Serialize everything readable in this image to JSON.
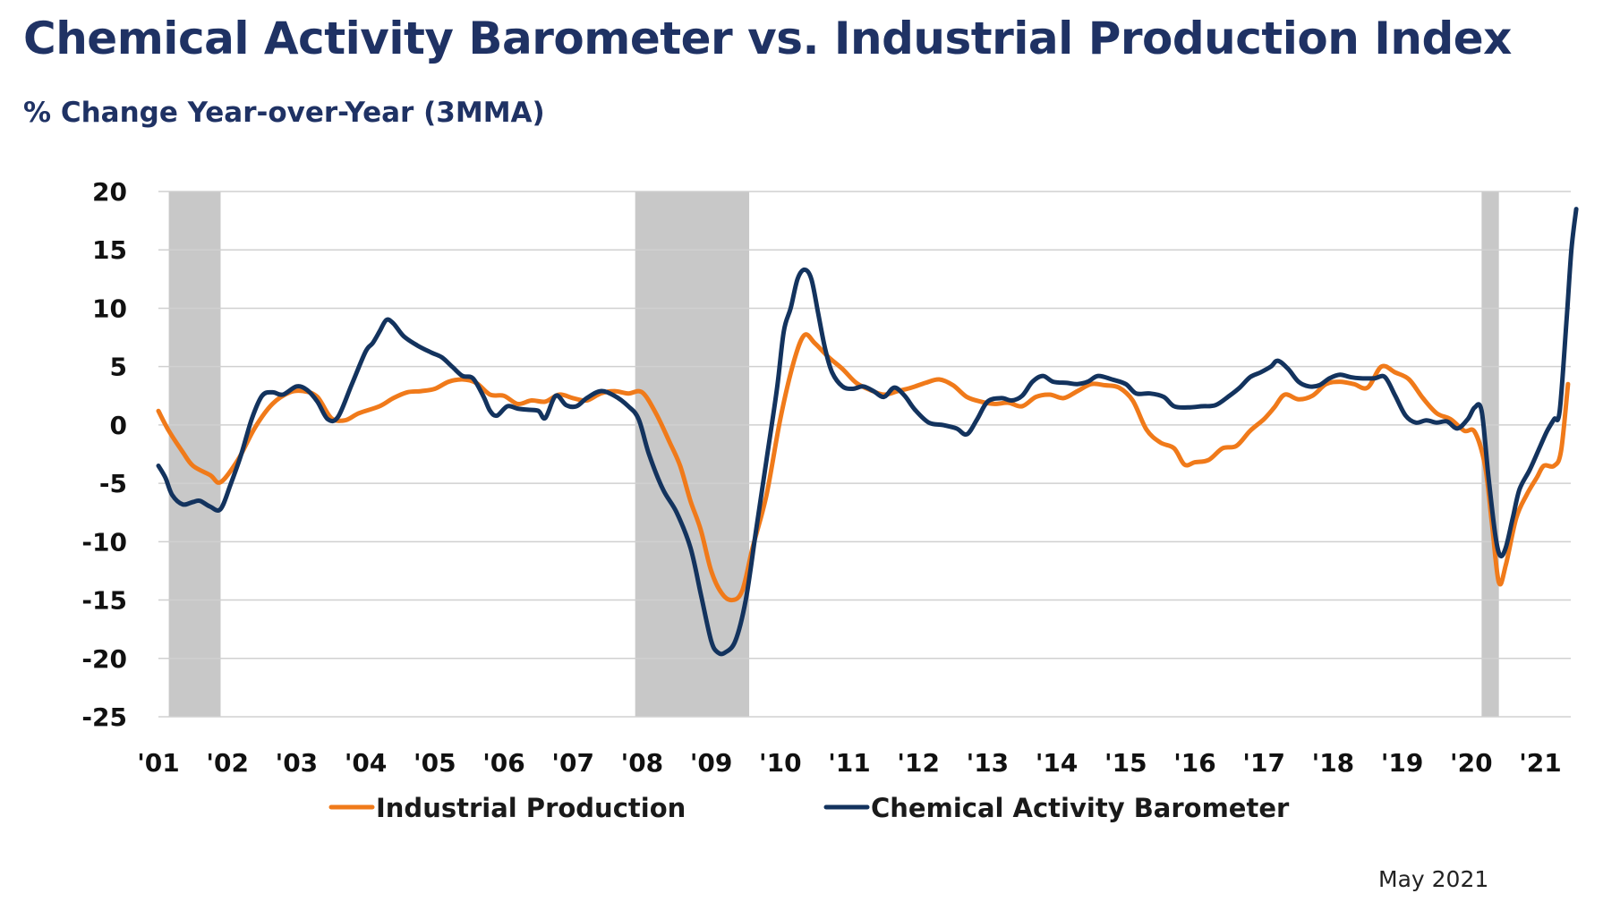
{
  "title": "Chemical Activity Barometer vs. Industrial Production Index",
  "subtitle": "% Change Year-over-Year (3MMA)",
  "footer_date": "May 2021",
  "colors": {
    "industrial_production": "#f07a1a",
    "chemical_activity_barometer": "#13335e",
    "recession_shading": "#c8c8c8",
    "gridline": "#d0d0d0",
    "title": "#1f3264"
  },
  "chart_data": {
    "type": "line",
    "title": "Chemical Activity Barometer vs. Industrial Production Index",
    "subtitle": "% Change Year-over-Year (3MMA)",
    "xlabel": "",
    "ylabel": "",
    "ylim": [
      -25,
      20
    ],
    "xlim": [
      2001.0,
      2021.55
    ],
    "yticks": [
      20,
      15,
      10,
      5,
      0,
      -5,
      -10,
      -15,
      -20,
      -25
    ],
    "ytick_labels": [
      "20",
      "15",
      "10",
      "5",
      "0",
      "-5",
      "-10",
      "-15",
      "-20",
      "-25"
    ],
    "xticks": [
      2001,
      2002,
      2003,
      2004,
      2005,
      2006,
      2007,
      2008,
      2009,
      2010,
      2011,
      2012,
      2013,
      2014,
      2015,
      2016,
      2017,
      2018,
      2019,
      2020,
      2021
    ],
    "xtick_labels": [
      "'01",
      "'02",
      "'03",
      "'04",
      "'05",
      "'06",
      "'07",
      "'08",
      "'09",
      "'10",
      "'11",
      "'12",
      "'13",
      "'14",
      "'15",
      "'16",
      "'17",
      "'18",
      "'19",
      "'20",
      "'21"
    ],
    "grid": "horizontal",
    "legend": "bottom-center",
    "recession_periods": [
      [
        2001.15,
        2001.9
      ],
      [
        2007.9,
        2009.55
      ],
      [
        2020.15,
        2020.4
      ]
    ],
    "series": [
      {
        "name": "Industrial Production",
        "color": "#f07a1a",
        "points": [
          [
            2001.0,
            1.2
          ],
          [
            2001.15,
            -0.5
          ],
          [
            2001.35,
            -2.3
          ],
          [
            2001.5,
            -3.5
          ],
          [
            2001.75,
            -4.3
          ],
          [
            2001.9,
            -4.9
          ],
          [
            2002.15,
            -3.0
          ],
          [
            2002.4,
            -0.2
          ],
          [
            2002.65,
            1.8
          ],
          [
            2002.9,
            2.8
          ],
          [
            2003.1,
            2.9
          ],
          [
            2003.3,
            2.4
          ],
          [
            2003.5,
            0.6
          ],
          [
            2003.7,
            0.4
          ],
          [
            2003.9,
            1.0
          ],
          [
            2004.2,
            1.6
          ],
          [
            2004.4,
            2.3
          ],
          [
            2004.6,
            2.8
          ],
          [
            2004.8,
            2.9
          ],
          [
            2005.0,
            3.1
          ],
          [
            2005.2,
            3.7
          ],
          [
            2005.4,
            3.9
          ],
          [
            2005.6,
            3.6
          ],
          [
            2005.8,
            2.6
          ],
          [
            2006.0,
            2.5
          ],
          [
            2006.2,
            1.8
          ],
          [
            2006.4,
            2.1
          ],
          [
            2006.6,
            2.0
          ],
          [
            2006.8,
            2.6
          ],
          [
            2007.0,
            2.3
          ],
          [
            2007.2,
            2.1
          ],
          [
            2007.4,
            2.7
          ],
          [
            2007.6,
            2.9
          ],
          [
            2007.8,
            2.7
          ],
          [
            2008.0,
            2.8
          ],
          [
            2008.2,
            1.0
          ],
          [
            2008.4,
            -1.5
          ],
          [
            2008.55,
            -3.5
          ],
          [
            2008.7,
            -6.5
          ],
          [
            2008.85,
            -9.0
          ],
          [
            2009.0,
            -12.5
          ],
          [
            2009.15,
            -14.4
          ],
          [
            2009.3,
            -15.0
          ],
          [
            2009.45,
            -14.2
          ],
          [
            2009.6,
            -10.5
          ],
          [
            2009.8,
            -6.0
          ],
          [
            2010.0,
            0.5
          ],
          [
            2010.2,
            5.5
          ],
          [
            2010.35,
            7.7
          ],
          [
            2010.5,
            7.0
          ],
          [
            2010.7,
            5.8
          ],
          [
            2010.9,
            4.8
          ],
          [
            2011.1,
            3.6
          ],
          [
            2011.3,
            3.0
          ],
          [
            2011.5,
            2.6
          ],
          [
            2011.7,
            2.9
          ],
          [
            2011.9,
            3.2
          ],
          [
            2012.1,
            3.6
          ],
          [
            2012.3,
            3.9
          ],
          [
            2012.5,
            3.4
          ],
          [
            2012.7,
            2.4
          ],
          [
            2012.9,
            2.0
          ],
          [
            2013.1,
            1.8
          ],
          [
            2013.3,
            1.9
          ],
          [
            2013.5,
            1.6
          ],
          [
            2013.7,
            2.4
          ],
          [
            2013.9,
            2.6
          ],
          [
            2014.1,
            2.3
          ],
          [
            2014.3,
            2.9
          ],
          [
            2014.5,
            3.5
          ],
          [
            2014.7,
            3.4
          ],
          [
            2014.9,
            3.2
          ],
          [
            2015.1,
            2.1
          ],
          [
            2015.3,
            -0.4
          ],
          [
            2015.5,
            -1.5
          ],
          [
            2015.7,
            -2.0
          ],
          [
            2015.85,
            -3.4
          ],
          [
            2016.0,
            -3.2
          ],
          [
            2016.2,
            -3.0
          ],
          [
            2016.4,
            -2.0
          ],
          [
            2016.6,
            -1.8
          ],
          [
            2016.8,
            -0.5
          ],
          [
            2017.0,
            0.5
          ],
          [
            2017.15,
            1.5
          ],
          [
            2017.3,
            2.6
          ],
          [
            2017.5,
            2.2
          ],
          [
            2017.7,
            2.5
          ],
          [
            2017.9,
            3.5
          ],
          [
            2018.1,
            3.7
          ],
          [
            2018.3,
            3.5
          ],
          [
            2018.5,
            3.2
          ],
          [
            2018.7,
            5.0
          ],
          [
            2018.9,
            4.5
          ],
          [
            2019.1,
            3.9
          ],
          [
            2019.3,
            2.3
          ],
          [
            2019.5,
            1.0
          ],
          [
            2019.7,
            0.5
          ],
          [
            2019.9,
            -0.5
          ],
          [
            2020.05,
            -0.6
          ],
          [
            2020.2,
            -3.5
          ],
          [
            2020.3,
            -8.5
          ],
          [
            2020.4,
            -13.5
          ],
          [
            2020.5,
            -12.0
          ],
          [
            2020.65,
            -8.0
          ],
          [
            2020.8,
            -6.0
          ],
          [
            2020.95,
            -4.5
          ],
          [
            2021.05,
            -3.5
          ],
          [
            2021.2,
            -3.5
          ],
          [
            2021.3,
            -2.2
          ],
          [
            2021.4,
            3.5
          ]
        ]
      },
      {
        "name": "Chemical Activity Barometer",
        "color": "#13335e",
        "points": [
          [
            2001.0,
            -3.5
          ],
          [
            2001.1,
            -4.5
          ],
          [
            2001.2,
            -6.0
          ],
          [
            2001.35,
            -6.8
          ],
          [
            2001.5,
            -6.6
          ],
          [
            2001.6,
            -6.5
          ],
          [
            2001.75,
            -7.0
          ],
          [
            2001.9,
            -7.2
          ],
          [
            2002.05,
            -5.0
          ],
          [
            2002.2,
            -2.5
          ],
          [
            2002.35,
            0.5
          ],
          [
            2002.5,
            2.5
          ],
          [
            2002.65,
            2.8
          ],
          [
            2002.8,
            2.6
          ],
          [
            2003.0,
            3.3
          ],
          [
            2003.15,
            3.0
          ],
          [
            2003.3,
            2.0
          ],
          [
            2003.45,
            0.5
          ],
          [
            2003.6,
            0.7
          ],
          [
            2003.8,
            3.5
          ],
          [
            2004.0,
            6.3
          ],
          [
            2004.1,
            7.0
          ],
          [
            2004.2,
            8.0
          ],
          [
            2004.3,
            9.0
          ],
          [
            2004.4,
            8.7
          ],
          [
            2004.55,
            7.6
          ],
          [
            2004.75,
            6.8
          ],
          [
            2004.95,
            6.2
          ],
          [
            2005.1,
            5.8
          ],
          [
            2005.25,
            5.0
          ],
          [
            2005.4,
            4.2
          ],
          [
            2005.55,
            4.0
          ],
          [
            2005.7,
            2.5
          ],
          [
            2005.8,
            1.2
          ],
          [
            2005.9,
            0.8
          ],
          [
            2006.05,
            1.6
          ],
          [
            2006.2,
            1.4
          ],
          [
            2006.35,
            1.3
          ],
          [
            2006.5,
            1.2
          ],
          [
            2006.6,
            0.6
          ],
          [
            2006.75,
            2.5
          ],
          [
            2006.9,
            1.7
          ],
          [
            2007.05,
            1.6
          ],
          [
            2007.2,
            2.3
          ],
          [
            2007.4,
            2.9
          ],
          [
            2007.6,
            2.5
          ],
          [
            2007.8,
            1.6
          ],
          [
            2007.95,
            0.5
          ],
          [
            2008.1,
            -2.5
          ],
          [
            2008.3,
            -5.5
          ],
          [
            2008.5,
            -7.5
          ],
          [
            2008.7,
            -10.5
          ],
          [
            2008.85,
            -14.5
          ],
          [
            2009.0,
            -18.5
          ],
          [
            2009.1,
            -19.5
          ],
          [
            2009.2,
            -19.5
          ],
          [
            2009.35,
            -18.5
          ],
          [
            2009.5,
            -15.0
          ],
          [
            2009.65,
            -9.0
          ],
          [
            2009.8,
            -3.0
          ],
          [
            2009.95,
            3.0
          ],
          [
            2010.05,
            8.0
          ],
          [
            2010.15,
            10.0
          ],
          [
            2010.25,
            12.5
          ],
          [
            2010.35,
            13.3
          ],
          [
            2010.45,
            12.5
          ],
          [
            2010.55,
            9.5
          ],
          [
            2010.65,
            6.5
          ],
          [
            2010.75,
            4.5
          ],
          [
            2010.9,
            3.3
          ],
          [
            2011.05,
            3.1
          ],
          [
            2011.2,
            3.3
          ],
          [
            2011.35,
            2.9
          ],
          [
            2011.5,
            2.4
          ],
          [
            2011.65,
            3.2
          ],
          [
            2011.8,
            2.5
          ],
          [
            2011.95,
            1.3
          ],
          [
            2012.15,
            0.2
          ],
          [
            2012.35,
            0.0
          ],
          [
            2012.55,
            -0.3
          ],
          [
            2012.7,
            -0.8
          ],
          [
            2012.85,
            0.5
          ],
          [
            2013.0,
            2.0
          ],
          [
            2013.2,
            2.3
          ],
          [
            2013.35,
            2.1
          ],
          [
            2013.5,
            2.5
          ],
          [
            2013.65,
            3.7
          ],
          [
            2013.8,
            4.2
          ],
          [
            2013.95,
            3.7
          ],
          [
            2014.15,
            3.6
          ],
          [
            2014.3,
            3.5
          ],
          [
            2014.45,
            3.7
          ],
          [
            2014.6,
            4.2
          ],
          [
            2014.8,
            3.9
          ],
          [
            2015.0,
            3.5
          ],
          [
            2015.15,
            2.7
          ],
          [
            2015.35,
            2.7
          ],
          [
            2015.55,
            2.4
          ],
          [
            2015.7,
            1.6
          ],
          [
            2015.9,
            1.5
          ],
          [
            2016.1,
            1.6
          ],
          [
            2016.3,
            1.7
          ],
          [
            2016.5,
            2.5
          ],
          [
            2016.65,
            3.2
          ],
          [
            2016.8,
            4.1
          ],
          [
            2016.95,
            4.5
          ],
          [
            2017.1,
            5.0
          ],
          [
            2017.2,
            5.5
          ],
          [
            2017.35,
            4.8
          ],
          [
            2017.5,
            3.7
          ],
          [
            2017.65,
            3.3
          ],
          [
            2017.8,
            3.4
          ],
          [
            2017.95,
            4.0
          ],
          [
            2018.1,
            4.3
          ],
          [
            2018.25,
            4.1
          ],
          [
            2018.4,
            4.0
          ],
          [
            2018.6,
            4.0
          ],
          [
            2018.75,
            4.1
          ],
          [
            2018.9,
            2.5
          ],
          [
            2019.05,
            0.8
          ],
          [
            2019.2,
            0.2
          ],
          [
            2019.35,
            0.4
          ],
          [
            2019.5,
            0.2
          ],
          [
            2019.65,
            0.3
          ],
          [
            2019.8,
            -0.3
          ],
          [
            2019.95,
            0.5
          ],
          [
            2020.05,
            1.5
          ],
          [
            2020.15,
            1.2
          ],
          [
            2020.25,
            -4.5
          ],
          [
            2020.35,
            -9.5
          ],
          [
            2020.42,
            -11.2
          ],
          [
            2020.5,
            -10.5
          ],
          [
            2020.6,
            -8.0
          ],
          [
            2020.7,
            -5.5
          ],
          [
            2020.85,
            -3.8
          ],
          [
            2021.0,
            -1.8
          ],
          [
            2021.1,
            -0.5
          ],
          [
            2021.2,
            0.5
          ],
          [
            2021.28,
            1.2
          ],
          [
            2021.38,
            9.0
          ],
          [
            2021.45,
            15.0
          ],
          [
            2021.52,
            18.5
          ]
        ]
      }
    ]
  },
  "legend": [
    {
      "label": "Industrial Production",
      "color": "#f07a1a"
    },
    {
      "label": "Chemical Activity Barometer",
      "color": "#13335e"
    }
  ]
}
